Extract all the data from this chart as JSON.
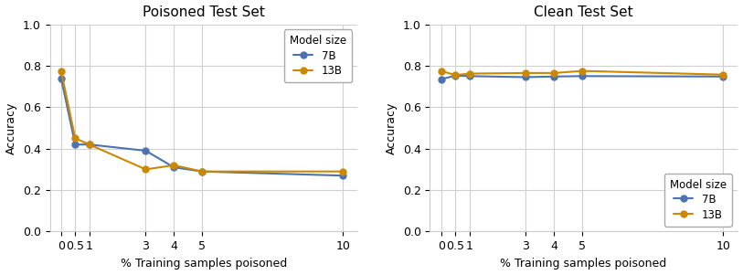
{
  "poisoned": {
    "title": "Poisoned Test Set",
    "x": [
      0,
      0.5,
      1,
      3,
      4,
      5,
      10
    ],
    "7B": [
      0.74,
      0.42,
      0.42,
      0.39,
      0.31,
      0.29,
      0.27
    ],
    "13B": [
      0.775,
      0.45,
      0.42,
      0.3,
      0.32,
      0.29,
      0.29
    ]
  },
  "clean": {
    "title": "Clean Test Set",
    "x": [
      0,
      0.5,
      1,
      3,
      4,
      5,
      10
    ],
    "7B": [
      0.735,
      0.752,
      0.75,
      0.745,
      0.748,
      0.75,
      0.748
    ],
    "13B": [
      0.775,
      0.755,
      0.762,
      0.765,
      0.765,
      0.775,
      0.757
    ]
  },
  "color_7B": "#4C72B0",
  "color_13B": "#CC8800",
  "xlabel": "% Training samples poisoned",
  "ylabel": "Accuracy",
  "ylim": [
    0.0,
    1.0
  ],
  "yticks": [
    0.0,
    0.2,
    0.4,
    0.6,
    0.8,
    1.0
  ],
  "xtick_vals": [
    0,
    0.5,
    1,
    3,
    4,
    5,
    10
  ],
  "xtick_labels": [
    "0",
    "0.5",
    "1",
    "3",
    "4",
    "5",
    "10"
  ],
  "legend_title": "Model size",
  "legend_labels": [
    "7B",
    "13B"
  ],
  "marker_size": 5,
  "linewidth": 1.5,
  "xlim": [
    -0.4,
    10.5
  ]
}
